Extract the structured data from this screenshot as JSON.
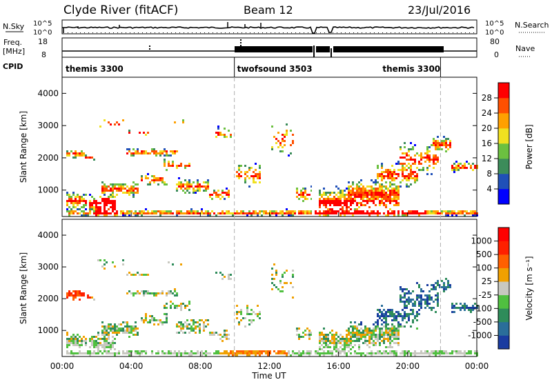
{
  "header": {
    "title": "Clyde River (fitACF)",
    "beam": "Beam 12",
    "date": "23/Jul/2016"
  },
  "nsky_panel": {
    "left_label": "N.Sky",
    "right_label": "N.Search",
    "left_ticks": [
      "10^5",
      "10^0"
    ],
    "right_ticks": [
      "10^5",
      "10^0"
    ]
  },
  "freq_panel": {
    "left_label_1": "Freq.",
    "left_label_2": "[MHz]",
    "right_label": "Nave",
    "left_ticks": [
      "18",
      "8"
    ],
    "right_ticks": [
      "80",
      "0"
    ]
  },
  "cpid_panel": {
    "label": "CPID",
    "modes": [
      {
        "name": "themis 3300",
        "start_hour": 0,
        "end_hour": 9.97
      },
      {
        "name": "twofsound 3503",
        "start_hour": 9.97,
        "end_hour": 21.9
      },
      {
        "name": "themis 3300",
        "start_hour": 21.9,
        "end_hour": 24
      }
    ]
  },
  "chart_data": [
    {
      "type": "heatmap",
      "name": "Power",
      "ylabel": "Slant Range [km]",
      "xlim_hours": [
        0,
        24
      ],
      "ylim_km": [
        180,
        4500
      ],
      "yticks": [
        "1000",
        "2000",
        "3000",
        "4000"
      ],
      "colorbar": {
        "label": "Power [dB]",
        "ticks": [
          "28",
          "24",
          "20",
          "16",
          "12",
          "8",
          "4"
        ],
        "colors": [
          "#0000ff",
          "#2050b8",
          "#3c8c5a",
          "#6cc040",
          "#f0e020",
          "#ffa000",
          "#ff5000",
          "#ff0000"
        ]
      }
    },
    {
      "type": "heatmap",
      "name": "Velocity",
      "ylabel": "Slant Range [km]",
      "xlabel": "Time UT",
      "xlim_hours": [
        0,
        24
      ],
      "ylim_km": [
        180,
        4500
      ],
      "yticks": [
        "1000",
        "2000",
        "3000",
        "4000"
      ],
      "xticks": [
        "00:00",
        "04:00",
        "08:00",
        "12:00",
        "16:00",
        "20:00",
        "00:00"
      ],
      "colorbar": {
        "label": "Velocity [m s⁻¹]",
        "ticks": [
          "1000",
          "500",
          "100",
          "25",
          "-25",
          "-100",
          "-500",
          "-1000"
        ],
        "colors": [
          "#1a3ca0",
          "#2a6e9a",
          "#2e8c5a",
          "#50c040",
          "#c8c8c0",
          "#f0a000",
          "#ff6000",
          "#ff2000",
          "#ff0000"
        ]
      }
    }
  ]
}
